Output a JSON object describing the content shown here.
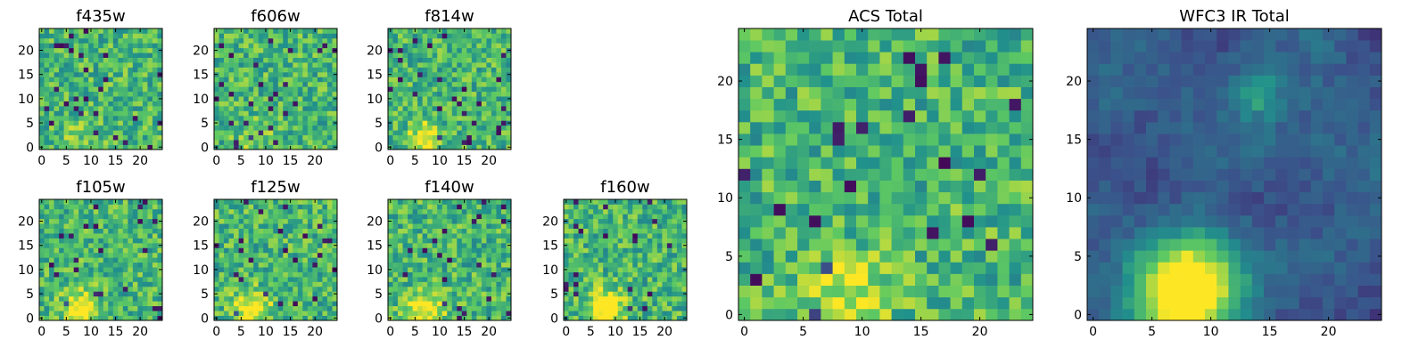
{
  "chart_data": [
    {
      "type": "heatmap",
      "title": "f435w",
      "seed": 11,
      "blob": {
        "x": 8,
        "y": 2,
        "amp": 0.1,
        "sigma": 3.5
      },
      "xticks": [
        "0",
        "5",
        "10",
        "15",
        "20"
      ],
      "yticks": [
        "0",
        "5",
        "10",
        "15",
        "20"
      ],
      "xlim": [
        -0.5,
        24.5
      ],
      "ylim": [
        -0.5,
        24.5
      ]
    },
    {
      "type": "heatmap",
      "title": "f606w",
      "seed": 23,
      "blob": {
        "x": 8,
        "y": 2,
        "amp": 0.12,
        "sigma": 3.0
      },
      "xticks": [
        "0",
        "5",
        "10",
        "15",
        "20"
      ],
      "yticks": [
        "0",
        "5",
        "10",
        "15",
        "20"
      ],
      "xlim": [
        -0.5,
        24.5
      ],
      "ylim": [
        -0.5,
        24.5
      ]
    },
    {
      "type": "heatmap",
      "title": "f814w",
      "seed": 37,
      "blob": {
        "x": 7,
        "y": 2,
        "amp": 0.45,
        "sigma": 2.0
      },
      "xticks": [
        "0",
        "5",
        "10",
        "15",
        "20"
      ],
      "yticks": [
        "0",
        "5",
        "10",
        "15",
        "20"
      ],
      "xlim": [
        -0.5,
        24.5
      ],
      "ylim": [
        -0.5,
        24.5
      ]
    },
    {
      "type": "heatmap",
      "title": "f105w",
      "seed": 41,
      "blob": {
        "x": 8,
        "y": 2,
        "amp": 0.45,
        "sigma": 2.5
      },
      "xticks": [
        "0",
        "5",
        "10",
        "15",
        "20"
      ],
      "yticks": [
        "0",
        "5",
        "10",
        "15",
        "20"
      ],
      "xlim": [
        -0.5,
        24.5
      ],
      "ylim": [
        -0.5,
        24.5
      ]
    },
    {
      "type": "heatmap",
      "title": "f125w",
      "seed": 53,
      "blob": {
        "x": 7,
        "y": 2,
        "amp": 0.45,
        "sigma": 2.5
      },
      "xticks": [
        "0",
        "5",
        "10",
        "15",
        "20"
      ],
      "yticks": [
        "0",
        "5",
        "10",
        "15",
        "20"
      ],
      "xlim": [
        -0.5,
        24.5
      ],
      "ylim": [
        -0.5,
        24.5
      ]
    },
    {
      "type": "heatmap",
      "title": "f140w",
      "seed": 67,
      "blob": {
        "x": 7,
        "y": 2,
        "amp": 0.45,
        "sigma": 2.5
      },
      "xticks": [
        "0",
        "5",
        "10",
        "15",
        "20"
      ],
      "yticks": [
        "0",
        "5",
        "10",
        "15",
        "20"
      ],
      "xlim": [
        -0.5,
        24.5
      ],
      "ylim": [
        -0.5,
        24.5
      ]
    },
    {
      "type": "heatmap",
      "title": "f160w",
      "seed": 79,
      "blob": {
        "x": 8,
        "y": 2,
        "amp": 0.55,
        "sigma": 2.5
      },
      "xticks": [
        "0",
        "5",
        "10",
        "15",
        "20"
      ],
      "yticks": [
        "0",
        "5",
        "10",
        "15",
        "20"
      ],
      "xlim": [
        -0.5,
        24.5
      ],
      "ylim": [
        -0.5,
        24.5
      ]
    },
    {
      "type": "heatmap",
      "title": "ACS Total",
      "seed": 97,
      "blob": {
        "x": 9,
        "y": 2,
        "amp": 0.3,
        "sigma": 2.5
      },
      "xticks": [
        "0",
        "5",
        "10",
        "15",
        "20"
      ],
      "yticks": [
        "0",
        "5",
        "10",
        "15",
        "20"
      ],
      "xlim": [
        -0.5,
        24.5
      ],
      "ylim": [
        -0.5,
        24.5
      ]
    },
    {
      "type": "heatmap",
      "title": "WFC3 IR Total",
      "seed": 113,
      "blob": {
        "x": 8,
        "y": 2,
        "amp": 1.0,
        "sigma": 3.0
      },
      "blob2": {
        "x": 14,
        "y": 19,
        "amp": 0.35,
        "sigma": 1.5
      },
      "xticks": [
        "0",
        "5",
        "10",
        "15",
        "20"
      ],
      "yticks": [
        "0",
        "5",
        "10",
        "15",
        "20"
      ],
      "xlim": [
        -0.5,
        24.5
      ],
      "ylim": [
        -0.5,
        24.5
      ]
    }
  ],
  "colormap": [
    "#440154",
    "#3b528b",
    "#21918c",
    "#5ec962",
    "#fde725"
  ]
}
